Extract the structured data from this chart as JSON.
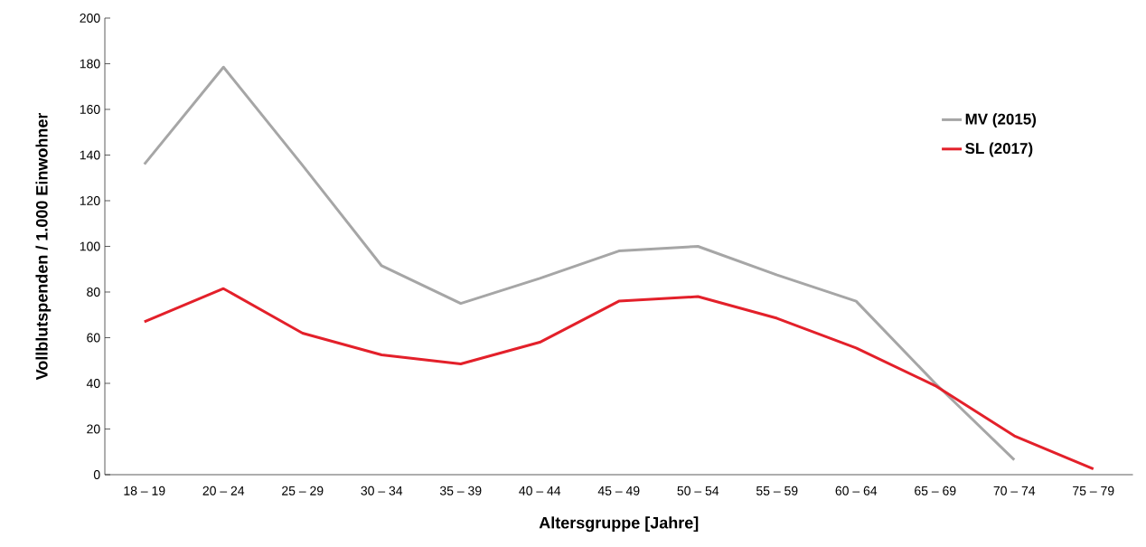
{
  "chart_data": {
    "type": "line",
    "xlabel": "Altersgruppe [Jahre]",
    "ylabel": "Vollblutspenden / 1.000 Einwohner",
    "categories": [
      "18 – 19",
      "20 – 24",
      "25 – 29",
      "30 – 34",
      "35 – 39",
      "40 – 44",
      "45 – 49",
      "50 – 54",
      "55 – 59",
      "60 – 64",
      "65 – 69",
      "70 – 74",
      "75 – 79"
    ],
    "series": [
      {
        "name": "MV (2015)",
        "color": "#a6a6a6",
        "values": [
          136,
          178.5,
          135.5,
          91.5,
          75,
          86,
          98,
          100,
          87.5,
          76,
          40,
          6.5,
          null
        ]
      },
      {
        "name": "SL (2017)",
        "color": "#e3202a",
        "values": [
          67,
          81.5,
          62,
          52.5,
          48.5,
          58,
          76,
          78,
          68.5,
          55.5,
          39,
          17,
          2.5
        ]
      }
    ],
    "ylim": [
      0,
      200
    ],
    "yticks": [
      0,
      20,
      40,
      60,
      80,
      100,
      120,
      140,
      160,
      180,
      200
    ],
    "grid": false,
    "legend": "top right",
    "marker": "none",
    "line_style": "solid"
  }
}
